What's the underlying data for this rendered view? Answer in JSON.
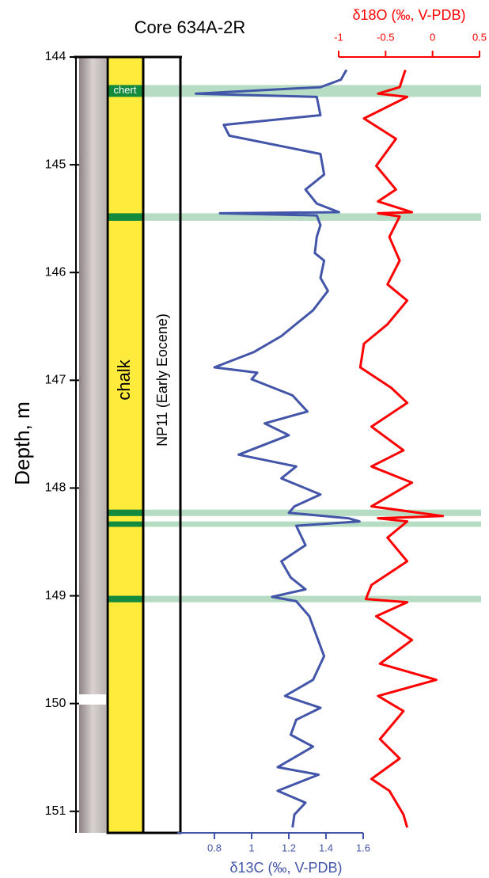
{
  "chart_data": {
    "type": "line",
    "title": "Core 634A-2R",
    "ylabel": "Depth, m",
    "ylim": [
      144,
      151.2
    ],
    "yticks": [
      144,
      145,
      146,
      147,
      148,
      149,
      150,
      151
    ],
    "lithology": "chalk",
    "zone": "NP11 (Early Eocene)",
    "chert_label": "chert",
    "chert_layers": [
      {
        "from": 144.26,
        "to": 144.37
      },
      {
        "from": 145.45,
        "to": 145.52
      },
      {
        "from": 148.2,
        "to": 148.26
      },
      {
        "from": 148.31,
        "to": 148.36
      },
      {
        "from": 149.0,
        "to": 149.06
      }
    ],
    "series": [
      {
        "axis_label": "δ13C (‰, V-PDB)",
        "color": "#4355a8",
        "axis": "bottom",
        "xlim": [
          0.6,
          1.6
        ],
        "xticks": [
          0.8,
          1,
          1.2,
          1.4,
          1.6
        ],
        "depth": [
          144.12,
          144.21,
          144.28,
          144.34,
          144.37,
          144.54,
          144.63,
          144.73,
          144.9,
          145.09,
          145.23,
          145.36,
          145.44,
          145.45,
          145.47,
          145.56,
          145.67,
          145.82,
          145.89,
          146.05,
          146.17,
          146.35,
          146.59,
          146.74,
          146.88,
          146.93,
          146.99,
          147.14,
          147.29,
          147.4,
          147.51,
          147.69,
          147.8,
          147.91,
          148.06,
          148.17,
          148.23,
          148.28,
          148.31,
          148.35,
          148.53,
          148.68,
          148.83,
          148.94,
          149.01,
          149.05,
          149.19,
          149.56,
          149.78,
          149.93,
          150.04,
          150.15,
          150.29,
          150.4,
          150.59,
          150.66,
          150.81,
          150.92,
          151.03,
          151.15
        ],
        "values": [
          1.51,
          1.48,
          1.37,
          0.7,
          1.35,
          1.37,
          0.85,
          0.88,
          1.37,
          1.39,
          1.29,
          1.35,
          1.47,
          0.83,
          1.35,
          1.37,
          1.35,
          1.34,
          1.39,
          1.37,
          1.41,
          1.33,
          1.16,
          1.01,
          0.8,
          1.03,
          1.0,
          1.22,
          1.3,
          1.07,
          1.2,
          0.93,
          1.24,
          1.16,
          1.37,
          1.23,
          1.2,
          1.52,
          1.58,
          1.24,
          1.29,
          1.16,
          1.21,
          1.29,
          1.11,
          1.24,
          1.31,
          1.39,
          1.33,
          1.18,
          1.37,
          1.24,
          1.21,
          1.33,
          1.14,
          1.36,
          1.14,
          1.29,
          1.23,
          1.22
        ]
      },
      {
        "axis_label": "δ18O (‰, V-PDB)",
        "color": "#ff0000",
        "axis": "top",
        "xlim": [
          -1,
          0.5
        ],
        "xticks": [
          -1,
          -0.5,
          0,
          0.5
        ],
        "depth": [
          144.12,
          144.28,
          144.34,
          144.37,
          144.57,
          144.76,
          145.01,
          145.23,
          145.34,
          145.44,
          145.45,
          145.48,
          145.67,
          145.89,
          146.11,
          146.26,
          146.48,
          146.66,
          146.88,
          147.07,
          147.21,
          147.43,
          147.65,
          147.8,
          147.95,
          148.17,
          148.26,
          148.28,
          148.31,
          148.46,
          148.68,
          148.9,
          149.03,
          149.06,
          149.19,
          149.41,
          149.63,
          149.78,
          149.93,
          150.07,
          150.33,
          150.51,
          150.7,
          150.81,
          151.03,
          151.15
        ],
        "values": [
          -0.29,
          -0.35,
          -0.58,
          -0.27,
          -0.73,
          -0.39,
          -0.6,
          -0.39,
          -0.58,
          -0.22,
          -0.58,
          -0.35,
          -0.46,
          -0.35,
          -0.48,
          -0.27,
          -0.48,
          -0.73,
          -0.77,
          -0.44,
          -0.27,
          -0.65,
          -0.31,
          -0.65,
          -0.22,
          -0.65,
          0.11,
          -0.58,
          -0.27,
          -0.48,
          -0.27,
          -0.65,
          -0.71,
          -0.27,
          -0.6,
          -0.22,
          -0.56,
          0.04,
          -0.58,
          -0.31,
          -0.56,
          -0.35,
          -0.65,
          -0.46,
          -0.31,
          -0.27
        ]
      }
    ]
  }
}
